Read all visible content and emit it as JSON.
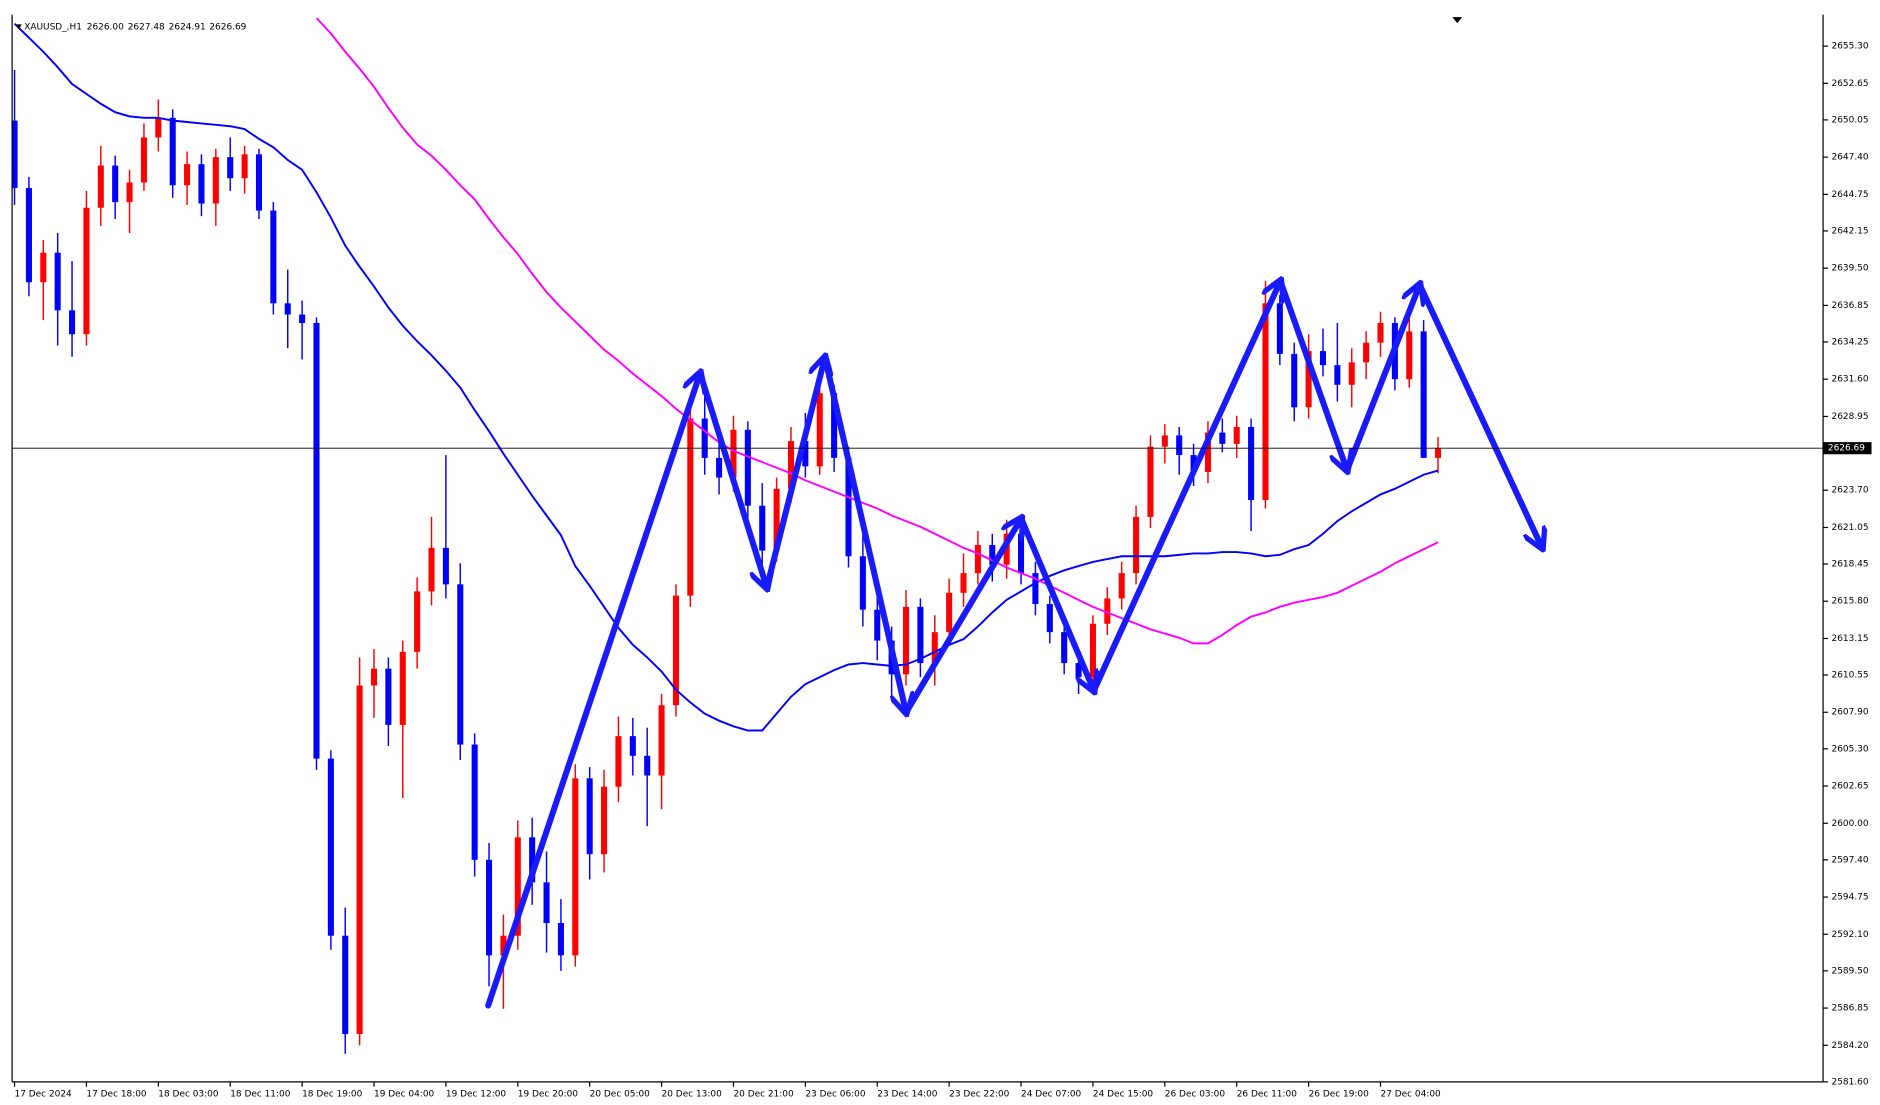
{
  "chart_data": {
    "type": "candlestick",
    "symbol": "XAUUSD_,H1",
    "last_candle_labels": [
      "2626.00",
      "2627.48",
      "2624.91",
      "2626.69"
    ],
    "up_color": "#ff0000",
    "down_color": "#0000ff",
    "grid": false,
    "ylim": [
      2581.6,
      2657.28
    ],
    "yticks": [
      {
        "value": 2655.3,
        "label": "2655.30"
      },
      {
        "value": 2652.65,
        "label": "2652.65"
      },
      {
        "value": 2650.05,
        "label": "2650.05"
      },
      {
        "value": 2647.4,
        "label": "2647.40"
      },
      {
        "value": 2644.75,
        "label": "2644.75"
      },
      {
        "value": 2642.15,
        "label": "2642.15"
      },
      {
        "value": 2639.5,
        "label": "2639.50"
      },
      {
        "value": 2636.85,
        "label": "2636.85"
      },
      {
        "value": 2634.25,
        "label": "2634.25"
      },
      {
        "value": 2631.6,
        "label": "2631.60"
      },
      {
        "value": 2628.95,
        "label": "2628.95"
      },
      {
        "value": 2623.7,
        "label": "2623.70"
      },
      {
        "value": 2621.05,
        "label": "2621.05"
      },
      {
        "value": 2618.45,
        "label": "2618.45"
      },
      {
        "value": 2615.8,
        "label": "2615.80"
      },
      {
        "value": 2613.15,
        "label": "2613.15"
      },
      {
        "value": 2610.55,
        "label": "2610.55"
      },
      {
        "value": 2607.9,
        "label": "2607.90"
      },
      {
        "value": 2605.3,
        "label": "2605.30"
      },
      {
        "value": 2602.65,
        "label": "2602.65"
      },
      {
        "value": 2600.0,
        "label": "2600.00"
      },
      {
        "value": 2597.4,
        "label": "2597.40"
      },
      {
        "value": 2594.75,
        "label": "2594.75"
      },
      {
        "value": 2592.1,
        "label": "2592.10"
      },
      {
        "value": 2589.5,
        "label": "2589.50"
      },
      {
        "value": 2586.85,
        "label": "2586.85"
      },
      {
        "value": 2584.2,
        "label": "2584.20"
      },
      {
        "value": 2581.6,
        "label": "2581.60"
      }
    ],
    "current_price": {
      "value": 2626.69,
      "label": "2626.69"
    },
    "categories": [
      "17 Dec 2024",
      null,
      null,
      null,
      null,
      "17 Dec 18:00",
      null,
      null,
      null,
      null,
      "18 Dec 03:00",
      null,
      null,
      null,
      null,
      "18 Dec 11:00",
      null,
      null,
      null,
      null,
      "18 Dec 19:00",
      null,
      null,
      null,
      null,
      "19 Dec 04:00",
      null,
      null,
      null,
      null,
      "19 Dec 12:00",
      null,
      null,
      null,
      null,
      "19 Dec 20:00",
      null,
      null,
      null,
      null,
      "20 Dec 05:00",
      null,
      null,
      null,
      null,
      "20 Dec 13:00",
      null,
      null,
      null,
      null,
      "20 Dec 21:00",
      null,
      null,
      null,
      null,
      "23 Dec 06:00",
      null,
      null,
      null,
      null,
      "23 Dec 14:00",
      null,
      null,
      null,
      null,
      "23 Dec 22:00",
      null,
      null,
      null,
      null,
      "24 Dec 07:00",
      null,
      null,
      null,
      null,
      "24 Dec 15:00",
      null,
      null,
      null,
      null,
      "26 Dec 03:00",
      null,
      null,
      null,
      null,
      "26 Dec 11:00",
      null,
      null,
      null,
      null,
      "26 Dec 19:00",
      null,
      null,
      null,
      null,
      "27 Dec 04:00",
      null,
      null,
      null,
      null
    ],
    "ohlc": [
      [
        2650.0,
        2653.6,
        2644.0,
        2645.2
      ],
      [
        2645.2,
        2646.0,
        2637.5,
        2638.5
      ],
      [
        2638.5,
        2641.5,
        2635.8,
        2640.6
      ],
      [
        2640.6,
        2642.0,
        2634.0,
        2636.5
      ],
      [
        2636.5,
        2640.0,
        2633.2,
        2634.8
      ],
      [
        2634.8,
        2645.0,
        2634.0,
        2643.8
      ],
      [
        2643.8,
        2648.2,
        2642.5,
        2646.8
      ],
      [
        2646.8,
        2647.5,
        2643.0,
        2644.2
      ],
      [
        2644.2,
        2646.5,
        2642.0,
        2645.6
      ],
      [
        2645.6,
        2649.8,
        2645.0,
        2648.8
      ],
      [
        2648.8,
        2651.5,
        2647.8,
        2650.2
      ],
      [
        2650.2,
        2650.8,
        2644.5,
        2645.4
      ],
      [
        2645.4,
        2647.8,
        2644.0,
        2646.9
      ],
      [
        2646.9,
        2647.6,
        2643.2,
        2644.1
      ],
      [
        2644.1,
        2648.0,
        2642.5,
        2647.4
      ],
      [
        2647.4,
        2648.8,
        2645.0,
        2645.9
      ],
      [
        2645.9,
        2648.2,
        2644.8,
        2647.6
      ],
      [
        2647.6,
        2648.0,
        2643.0,
        2643.6
      ],
      [
        2643.6,
        2644.2,
        2636.2,
        2637.0
      ],
      [
        2637.0,
        2639.4,
        2633.8,
        2636.2
      ],
      [
        2636.2,
        2637.2,
        2633.0,
        2635.6
      ],
      [
        2635.6,
        2636.0,
        2603.8,
        2604.6
      ],
      [
        2604.6,
        2605.2,
        2591.0,
        2592.0
      ],
      [
        2592.0,
        2594.0,
        2583.6,
        2585.0
      ],
      [
        2585.0,
        2611.8,
        2584.2,
        2609.8
      ],
      [
        2609.8,
        2612.4,
        2607.5,
        2611.0
      ],
      [
        2611.0,
        2611.8,
        2605.5,
        2607.0
      ],
      [
        2607.0,
        2613.0,
        2601.8,
        2612.2
      ],
      [
        2612.2,
        2617.5,
        2611.0,
        2616.5
      ],
      [
        2616.5,
        2621.8,
        2615.5,
        2619.6
      ],
      [
        2619.6,
        2626.2,
        2616.0,
        2617.0
      ],
      [
        2617.0,
        2618.5,
        2604.5,
        2605.6
      ],
      [
        2605.6,
        2606.4,
        2596.2,
        2597.4
      ],
      [
        2597.4,
        2598.6,
        2588.4,
        2590.6
      ],
      [
        2590.6,
        2593.5,
        2586.8,
        2592.0
      ],
      [
        2592.0,
        2600.2,
        2591.0,
        2599.0
      ],
      [
        2599.0,
        2600.4,
        2594.2,
        2595.8
      ],
      [
        2595.8,
        2598.0,
        2590.8,
        2592.9
      ],
      [
        2592.9,
        2594.6,
        2589.5,
        2590.6
      ],
      [
        2590.6,
        2604.2,
        2589.8,
        2603.2
      ],
      [
        2603.2,
        2604.0,
        2596.0,
        2597.8
      ],
      [
        2597.8,
        2603.8,
        2596.5,
        2602.6
      ],
      [
        2602.6,
        2607.6,
        2601.5,
        2606.2
      ],
      [
        2606.2,
        2607.5,
        2603.4,
        2604.8
      ],
      [
        2604.8,
        2606.8,
        2599.8,
        2603.4
      ],
      [
        2603.4,
        2609.2,
        2601.0,
        2608.4
      ],
      [
        2608.4,
        2617.0,
        2607.6,
        2616.2
      ],
      [
        2616.2,
        2630.0,
        2615.4,
        2628.8
      ],
      [
        2628.8,
        2630.4,
        2624.8,
        2626.0
      ],
      [
        2626.0,
        2628.2,
        2623.4,
        2624.6
      ],
      [
        2624.6,
        2629.0,
        2623.6,
        2628.0
      ],
      [
        2628.0,
        2628.6,
        2621.4,
        2622.6
      ],
      [
        2622.6,
        2624.2,
        2617.2,
        2619.4
      ],
      [
        2619.4,
        2624.6,
        2618.6,
        2623.8
      ],
      [
        2623.8,
        2628.2,
        2622.8,
        2627.2
      ],
      [
        2627.2,
        2629.2,
        2624.6,
        2625.4
      ],
      [
        2625.4,
        2632.0,
        2624.8,
        2630.6
      ],
      [
        2630.6,
        2631.2,
        2625.0,
        2626.0
      ],
      [
        2626.0,
        2626.8,
        2618.2,
        2619.0
      ],
      [
        2619.0,
        2620.6,
        2614.0,
        2615.2
      ],
      [
        2615.2,
        2616.6,
        2611.6,
        2613.0
      ],
      [
        2613.0,
        2614.0,
        2609.0,
        2610.6
      ],
      [
        2610.6,
        2616.6,
        2609.8,
        2615.4
      ],
      [
        2615.4,
        2616.0,
        2610.4,
        2611.4
      ],
      [
        2611.4,
        2614.8,
        2609.8,
        2613.6
      ],
      [
        2613.6,
        2617.4,
        2612.6,
        2616.4
      ],
      [
        2616.4,
        2619.2,
        2615.4,
        2617.8
      ],
      [
        2617.8,
        2620.8,
        2617.0,
        2619.8
      ],
      [
        2619.8,
        2620.6,
        2617.2,
        2618.4
      ],
      [
        2618.4,
        2621.6,
        2617.4,
        2620.6
      ],
      [
        2620.6,
        2621.2,
        2617.0,
        2617.8
      ],
      [
        2617.8,
        2618.6,
        2614.8,
        2615.6
      ],
      [
        2615.6,
        2616.2,
        2612.8,
        2613.6
      ],
      [
        2613.6,
        2614.4,
        2610.6,
        2611.4
      ],
      [
        2611.4,
        2612.2,
        2609.2,
        2610.4
      ],
      [
        2610.4,
        2614.8,
        2609.6,
        2614.2
      ],
      [
        2614.2,
        2616.8,
        2613.4,
        2616.0
      ],
      [
        2616.0,
        2618.6,
        2615.2,
        2617.8
      ],
      [
        2617.8,
        2622.6,
        2617.0,
        2621.8
      ],
      [
        2621.8,
        2627.6,
        2621.0,
        2626.8
      ],
      [
        2626.8,
        2628.4,
        2625.6,
        2627.6
      ],
      [
        2627.6,
        2628.2,
        2624.8,
        2626.2
      ],
      [
        2626.2,
        2627.0,
        2624.0,
        2625.0
      ],
      [
        2625.0,
        2628.6,
        2624.2,
        2627.8
      ],
      [
        2627.8,
        2628.8,
        2626.4,
        2627.0
      ],
      [
        2627.0,
        2629.0,
        2626.0,
        2628.2
      ],
      [
        2628.2,
        2628.8,
        2620.8,
        2623.0
      ],
      [
        2623.0,
        2638.6,
        2622.4,
        2637.0
      ],
      [
        2637.0,
        2637.6,
        2632.6,
        2633.4
      ],
      [
        2633.4,
        2634.2,
        2628.6,
        2629.6
      ],
      [
        2629.6,
        2634.8,
        2628.8,
        2633.6
      ],
      [
        2633.6,
        2635.2,
        2631.8,
        2632.6
      ],
      [
        2632.6,
        2635.6,
        2630.0,
        2631.2
      ],
      [
        2631.2,
        2633.8,
        2629.6,
        2632.8
      ],
      [
        2632.8,
        2635.0,
        2631.6,
        2634.2
      ],
      [
        2634.2,
        2636.4,
        2633.2,
        2635.6
      ],
      [
        2635.6,
        2636.0,
        2630.8,
        2631.6
      ],
      [
        2631.6,
        2636.2,
        2631.0,
        2635.0
      ],
      [
        2635.0,
        2635.8,
        2626.0,
        2626.0
      ],
      [
        2626.0,
        2627.48,
        2624.91,
        2626.69
      ]
    ],
    "moving_averages": [
      {
        "color": "#0000ff",
        "values": [
          2656.9,
          2655.9,
          2654.9,
          2653.8,
          2652.6,
          2651.9,
          2651.2,
          2650.6,
          2650.3,
          2650.2,
          2650.2,
          2650.0,
          2649.9,
          2649.8,
          2649.7,
          2649.6,
          2649.4,
          2648.7,
          2648.1,
          2647.2,
          2646.5,
          2644.9,
          2643.1,
          2641.1,
          2639.6,
          2638.2,
          2636.7,
          2635.4,
          2634.3,
          2633.3,
          2632.2,
          2631.0,
          2629.4,
          2627.9,
          2626.3,
          2624.8,
          2623.3,
          2621.9,
          2620.5,
          2618.3,
          2616.9,
          2615.4,
          2613.9,
          2612.7,
          2611.8,
          2610.8,
          2609.5,
          2608.6,
          2607.8,
          2607.3,
          2606.9,
          2606.6,
          2606.6,
          2607.8,
          2609.0,
          2609.9,
          2610.4,
          2610.9,
          2611.3,
          2611.4,
          2611.3,
          2611.2,
          2611.3,
          2611.7,
          2612.2,
          2612.7,
          2613.1,
          2614.0,
          2615.0,
          2615.9,
          2616.5,
          2617.1,
          2617.6,
          2618.0,
          2618.3,
          2618.6,
          2618.8,
          2619.0,
          2619.0,
          2619.0,
          2619.0,
          2619.1,
          2619.2,
          2619.2,
          2619.3,
          2619.3,
          2619.2,
          2619.0,
          2619.1,
          2619.5,
          2619.8,
          2620.6,
          2621.5,
          2622.2,
          2622.8,
          2623.4,
          2623.8,
          2624.3,
          2624.8,
          2625.1
        ]
      },
      {
        "color": "#ff00ff",
        "values": [
          null,
          null,
          null,
          null,
          null,
          null,
          null,
          null,
          null,
          null,
          null,
          null,
          null,
          null,
          null,
          null,
          null,
          null,
          null,
          null,
          null,
          2657.3,
          2656.2,
          2654.9,
          2653.7,
          2652.4,
          2650.9,
          2649.5,
          2648.3,
          2647.5,
          2646.5,
          2645.4,
          2644.4,
          2643.0,
          2641.7,
          2640.5,
          2639.1,
          2637.8,
          2636.7,
          2635.7,
          2634.7,
          2633.7,
          2632.9,
          2632.0,
          2631.2,
          2630.4,
          2629.5,
          2628.7,
          2627.9,
          2627.1,
          2626.5,
          2626.1,
          2625.7,
          2625.3,
          2624.9,
          2624.4,
          2624.0,
          2623.6,
          2623.2,
          2622.8,
          2622.4,
          2621.9,
          2621.5,
          2621.1,
          2620.6,
          2620.1,
          2619.6,
          2619.2,
          2618.7,
          2618.2,
          2617.8,
          2617.4,
          2616.9,
          2616.4,
          2615.9,
          2615.4,
          2615.0,
          2614.6,
          2614.2,
          2613.8,
          2613.5,
          2613.2,
          2612.8,
          2612.8,
          2613.4,
          2614.1,
          2614.7,
          2615.0,
          2615.4,
          2615.7,
          2615.9,
          2616.1,
          2616.4,
          2616.9,
          2617.4,
          2617.9,
          2618.5,
          2619.0,
          2619.5,
          2620.0
        ]
      }
    ]
  }
}
